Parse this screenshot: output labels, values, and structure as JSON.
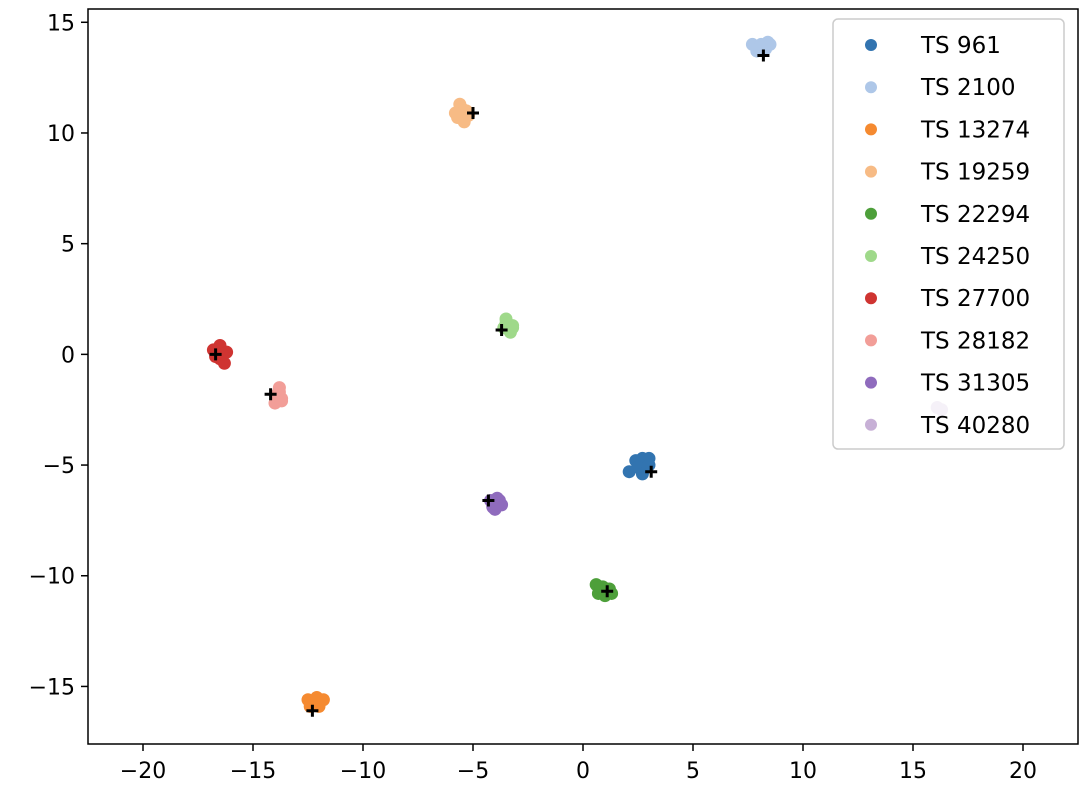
{
  "chart_data": {
    "type": "scatter",
    "title": "",
    "xlabel": "",
    "ylabel": "",
    "xlim": [
      -22.5,
      22.5
    ],
    "ylim": [
      -17.6,
      15.6
    ],
    "grid": false,
    "legend_position": "top-right",
    "x_ticks": [
      -20,
      -15,
      -10,
      -5,
      0,
      5,
      10,
      15,
      20
    ],
    "x_tick_labels": [
      "−20",
      "−15",
      "−10",
      "−5",
      "0",
      "5",
      "10",
      "15",
      "20"
    ],
    "y_ticks": [
      15,
      10,
      5,
      0,
      -5,
      -10,
      -15
    ],
    "y_tick_labels": [
      "15",
      "10",
      "5",
      "0",
      "−5",
      "−10",
      "−15"
    ],
    "series": [
      {
        "name": "TS 961",
        "color": "#3274b0",
        "points": [
          [
            2.4,
            -4.8
          ],
          [
            2.7,
            -4.7
          ],
          [
            3.0,
            -4.7
          ],
          [
            2.6,
            -5.0
          ],
          [
            2.9,
            -5.1
          ],
          [
            2.5,
            -5.1
          ],
          [
            2.7,
            -5.4
          ],
          [
            2.1,
            -5.3
          ],
          [
            3.0,
            -5.0
          ]
        ],
        "marker": [
          3.1,
          -5.3
        ]
      },
      {
        "name": "TS 2100",
        "color": "#aec7e8",
        "points": [
          [
            7.7,
            14.0
          ],
          [
            8.0,
            13.9
          ],
          [
            8.4,
            14.1
          ],
          [
            7.9,
            13.7
          ],
          [
            8.3,
            13.8
          ],
          [
            8.5,
            14.0
          ],
          [
            8.1,
            14.0
          ]
        ],
        "marker": [
          8.2,
          13.5
        ]
      },
      {
        "name": "TS 13274",
        "color": "#f58a30",
        "points": [
          [
            -12.5,
            -15.6
          ],
          [
            -12.2,
            -15.7
          ],
          [
            -11.8,
            -15.6
          ],
          [
            -12.0,
            -15.9
          ],
          [
            -12.4,
            -15.9
          ],
          [
            -12.1,
            -15.5
          ]
        ],
        "marker": [
          -12.3,
          -16.1
        ]
      },
      {
        "name": "TS 19259",
        "color": "#f7bb85",
        "points": [
          [
            -5.6,
            11.3
          ],
          [
            -5.3,
            11.0
          ],
          [
            -5.7,
            10.7
          ],
          [
            -5.4,
            10.5
          ],
          [
            -5.2,
            10.8
          ],
          [
            -5.5,
            11.1
          ],
          [
            -5.8,
            10.9
          ]
        ],
        "marker": [
          -5.0,
          10.9
        ]
      },
      {
        "name": "TS 22294",
        "color": "#4d9f3a",
        "points": [
          [
            0.6,
            -10.4
          ],
          [
            0.9,
            -10.5
          ],
          [
            1.2,
            -10.6
          ],
          [
            0.7,
            -10.8
          ],
          [
            1.0,
            -10.9
          ],
          [
            1.3,
            -10.8
          ],
          [
            0.8,
            -10.5
          ],
          [
            1.1,
            -10.7
          ]
        ],
        "marker": [
          1.1,
          -10.7
        ]
      },
      {
        "name": "TS 24250",
        "color": "#9fd98a",
        "points": [
          [
            -3.5,
            1.6
          ],
          [
            -3.2,
            1.3
          ],
          [
            -3.6,
            1.2
          ],
          [
            -3.3,
            1.0
          ],
          [
            -3.5,
            1.4
          ],
          [
            -3.2,
            1.2
          ]
        ],
        "marker": [
          -3.7,
          1.1
        ]
      },
      {
        "name": "TS 27700",
        "color": "#cf3431",
        "points": [
          [
            -16.8,
            0.2
          ],
          [
            -16.5,
            0.4
          ],
          [
            -16.2,
            0.1
          ],
          [
            -16.5,
            -0.2
          ],
          [
            -16.3,
            -0.4
          ],
          [
            -16.7,
            -0.1
          ],
          [
            -16.4,
            0.0
          ]
        ],
        "marker": [
          -16.7,
          0.0
        ]
      },
      {
        "name": "TS 28182",
        "color": "#f29e98",
        "points": [
          [
            -13.8,
            -1.5
          ],
          [
            -13.9,
            -1.8
          ],
          [
            -13.7,
            -2.0
          ],
          [
            -14.0,
            -2.2
          ],
          [
            -13.8,
            -1.7
          ],
          [
            -13.7,
            -2.1
          ]
        ],
        "marker": [
          -14.2,
          -1.8
        ]
      },
      {
        "name": "TS 31305",
        "color": "#8f6bbd",
        "points": [
          [
            -4.2,
            -6.6
          ],
          [
            -3.9,
            -6.5
          ],
          [
            -3.7,
            -6.8
          ],
          [
            -4.0,
            -7.0
          ],
          [
            -3.8,
            -6.6
          ],
          [
            -4.1,
            -6.9
          ],
          [
            -3.9,
            -6.8
          ]
        ],
        "marker": [
          -4.3,
          -6.6
        ]
      },
      {
        "name": "TS 40280",
        "color": "#c7b0d6",
        "points": [
          [
            16.1,
            -2.4
          ],
          [
            16.3,
            -2.5
          ]
        ],
        "marker": null
      }
    ]
  }
}
